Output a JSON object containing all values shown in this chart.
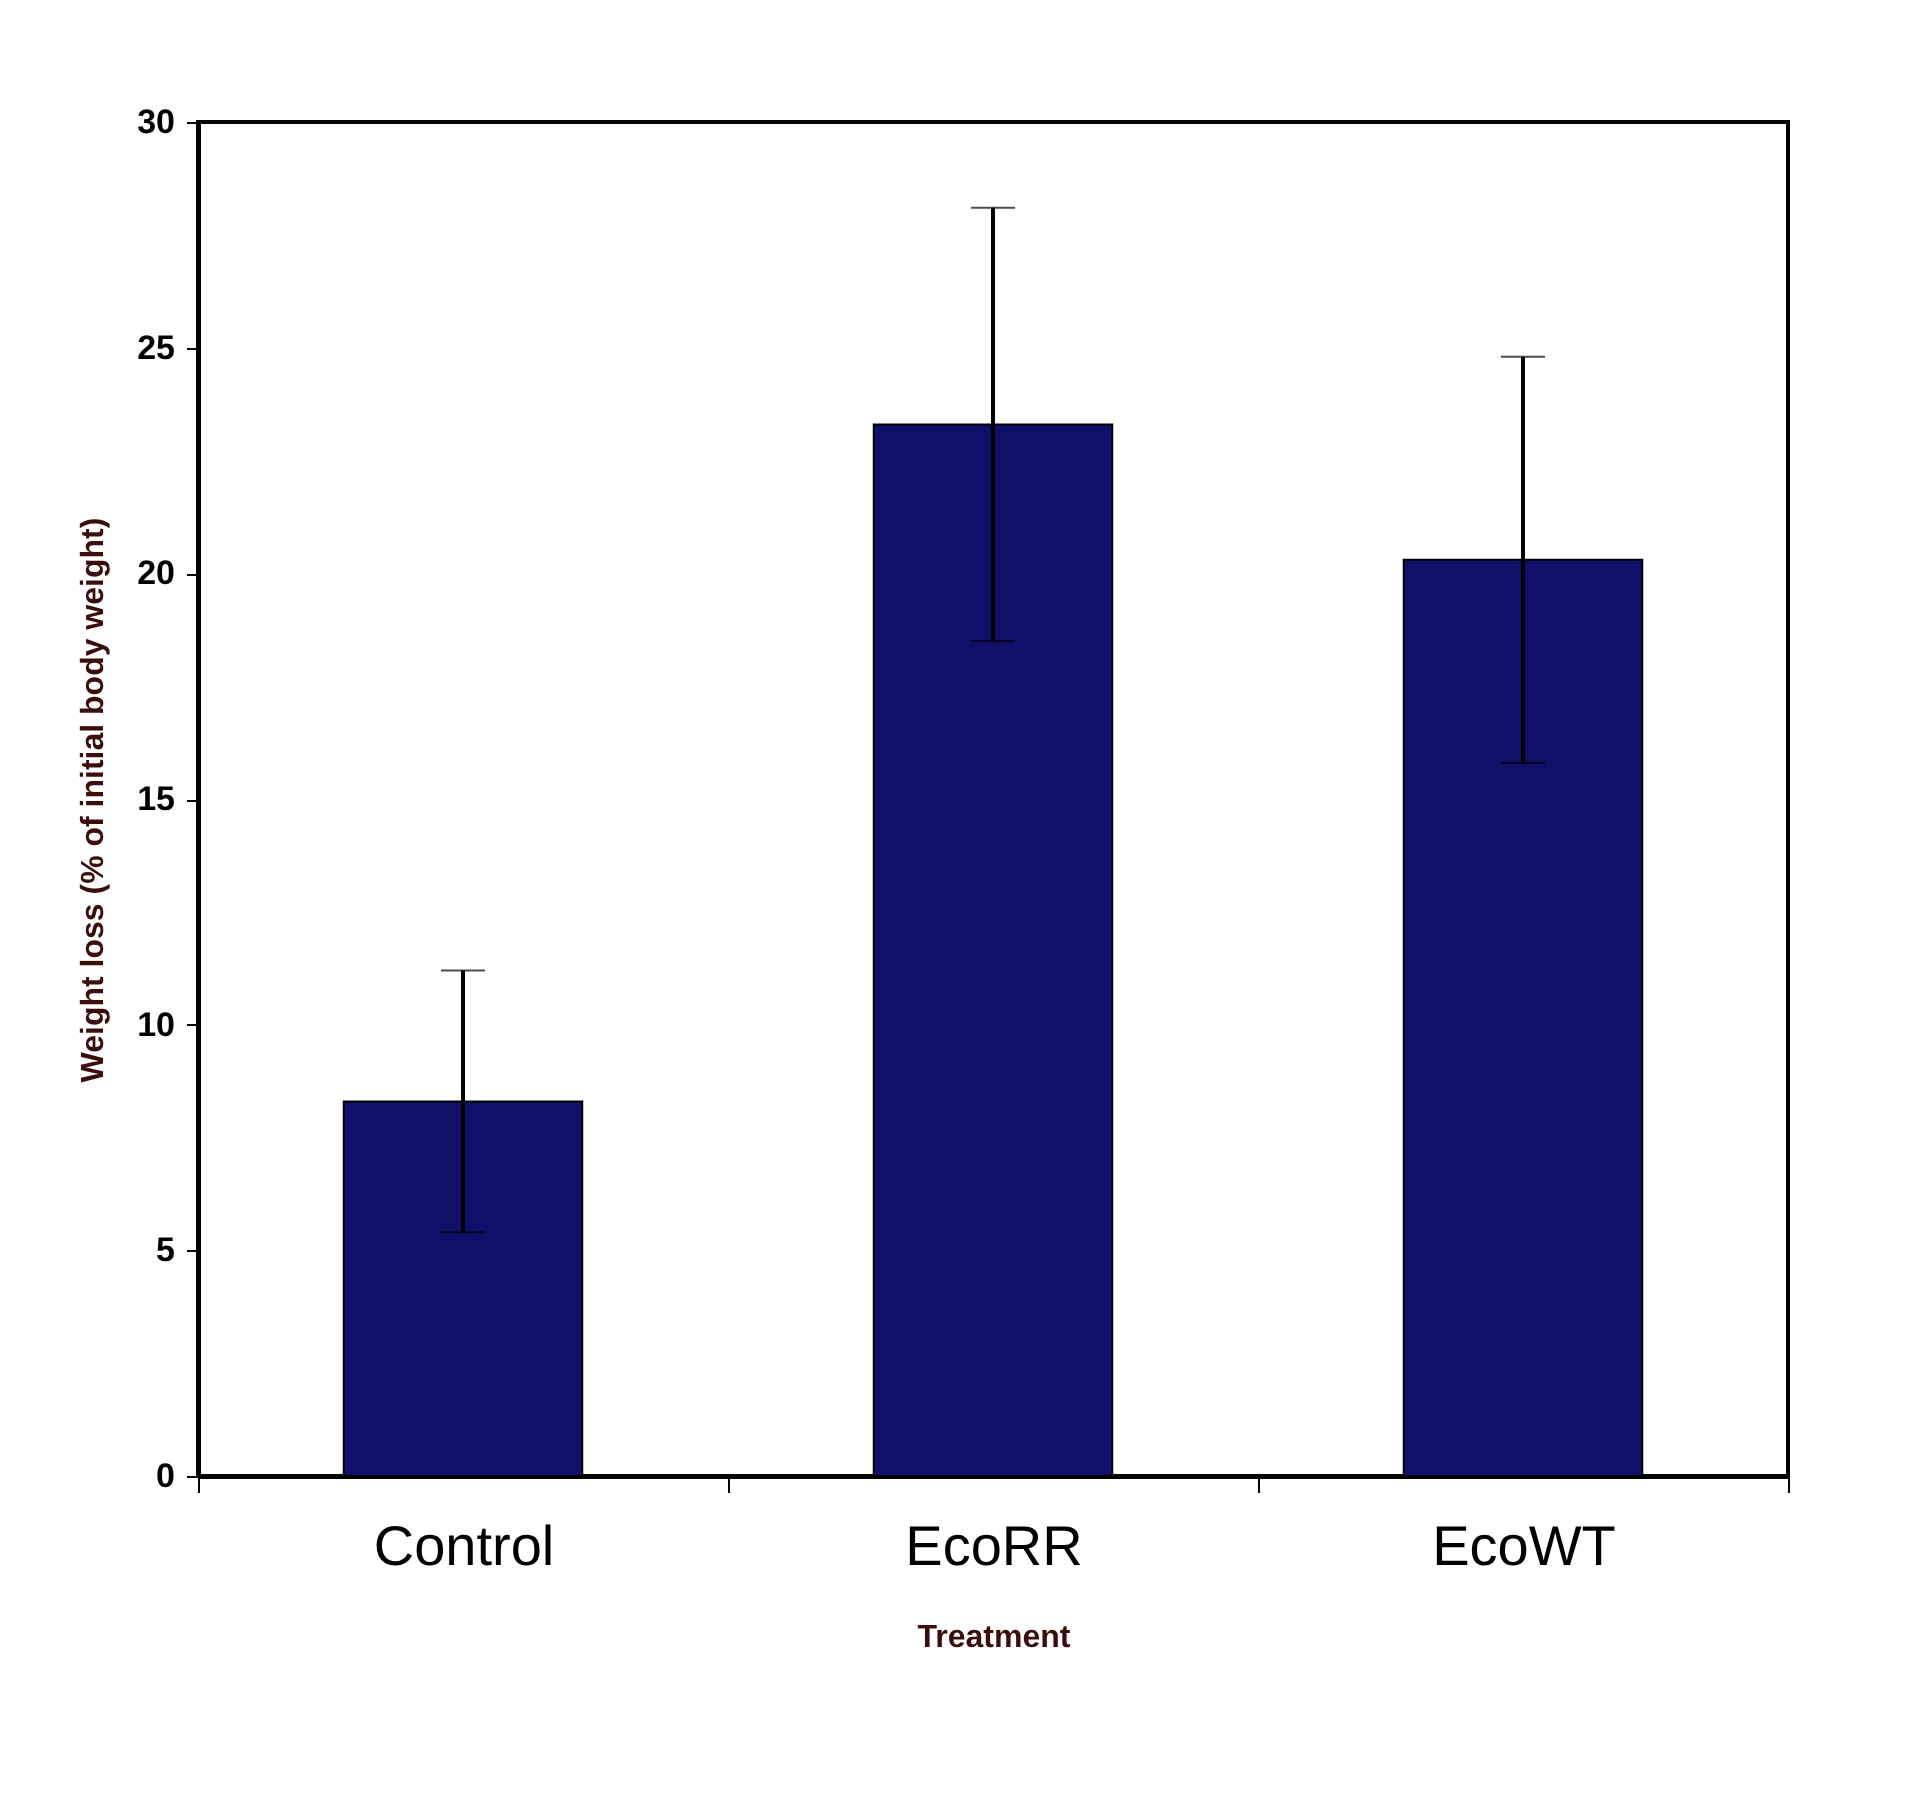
{
  "chart_data": {
    "type": "bar",
    "xlabel": "Treatment",
    "ylabel": "Weight loss (% of initial body weight)",
    "categories": [
      "Control",
      "EcoRR",
      "EcoWT"
    ],
    "values": [
      8.3,
      23.3,
      20.3
    ],
    "errors": [
      2.9,
      4.8,
      4.5
    ],
    "color": "#10106a",
    "ylim": [
      0,
      30
    ],
    "yticks": [
      0,
      5,
      10,
      15,
      20,
      25,
      30
    ],
    "grid": false
  }
}
